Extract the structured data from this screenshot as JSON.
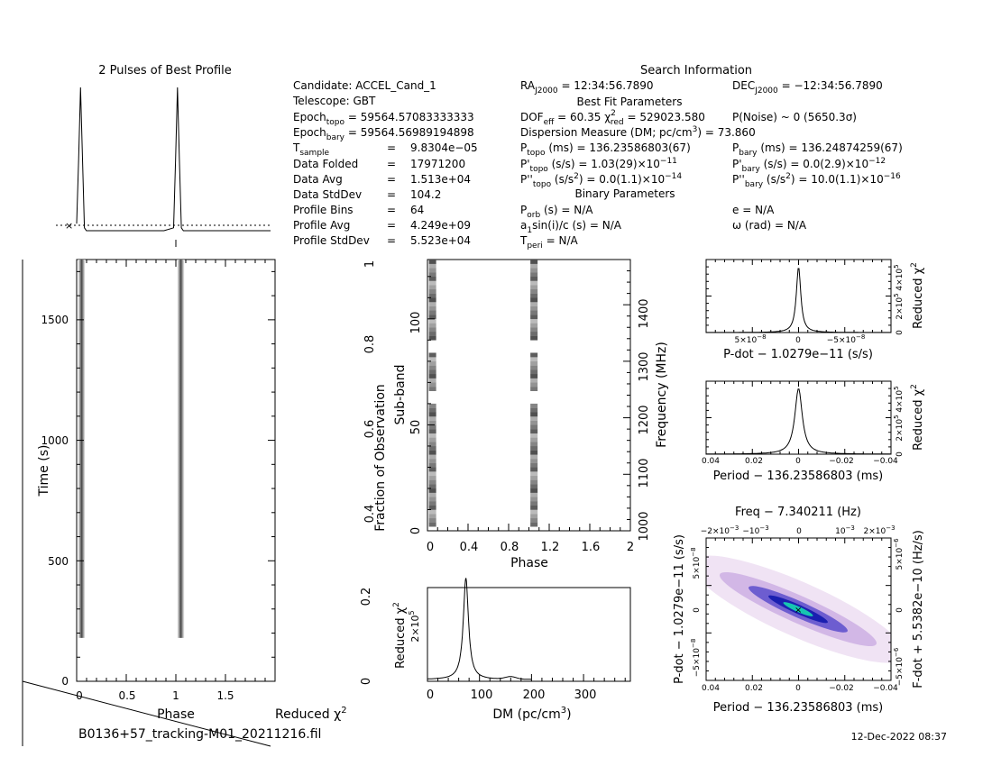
{
  "header": {
    "profile_title": "2 Pulses of Best Profile",
    "search_title": "Search Information",
    "best_fit_title": "Best Fit Parameters",
    "binary_title": "Binary Parameters"
  },
  "info_col1": [
    {
      "label": "Candidate:  ACCEL_Cand_1"
    },
    {
      "label": "Telescope:  GBT"
    },
    {
      "label": "Epoch",
      "sub": "topo",
      "value": " = 59564.57083333333"
    },
    {
      "label": "Epoch",
      "sub": "bary",
      "value": " = 59564.56989194898"
    },
    {
      "label": "T",
      "sub": "sample",
      "value": "9.8304e−05"
    },
    {
      "label": "Data Folded",
      "value": "17971200"
    },
    {
      "label": "Data Avg",
      "value": "1.513e+04"
    },
    {
      "label": "Data StdDev",
      "value": "104.2"
    },
    {
      "label": "Profile Bins",
      "value": "64"
    },
    {
      "label": "Profile Avg",
      "value": "4.249e+09"
    },
    {
      "label": "Profile StdDev",
      "value": "5.523e+04"
    }
  ],
  "info_col2": {
    "ra": "RA",
    "ra_sub": "J2000",
    "ra_value": " = 12:34:56.7890",
    "dec": "DEC",
    "dec_sub": "J2000",
    "dec_value": " = −12:34:56.7890",
    "dof": "DOF",
    "dof_sub": "eff",
    "dof_value": " = 60.35  ",
    "chi": "χ",
    "chi_sup": "2",
    "chi_sub": "red",
    "chi_value": " = 529023.580",
    "pnoise": "P(Noise) ~ 0    (5650.3σ)",
    "dm_line": "Dispersion Measure (DM; pc/cm",
    "dm_sup": "3",
    "dm_value": ") = 73.860",
    "ptopo": "P",
    "ptopo_sub": "topo",
    "ptopo_value": " (ms) =  136.23586803(67)",
    "pbary": "P",
    "pbary_sub": "bary",
    "pbary_value": " (ms) =  136.24874259(67)",
    "pdtopo_value": " (s/s) =  1.03(29)×10",
    "pdtopo_exp": "−11",
    "pdbary_value": " (s/s) = 0.0(2.9)×10",
    "pdbary_exp": "−12",
    "pddtopo_value": " (s/s",
    "pddtopo_value2": ") = 0.0(1.1)×10",
    "pddtopo_exp": "−14",
    "pddbary_value2": ") =   10.0(1.1)×10",
    "pddbary_exp": "−16",
    "porb": "P",
    "porb_sub": "orb",
    "porb_value": " (s) = N/A",
    "ecc": "e = N/A",
    "a1": "a",
    "a1_sub": "1",
    "a1_value": "sin(i)/c (s) = N/A",
    "omega": "ω (rad) = N/A",
    "tperi": "T",
    "tperi_sub": "peri",
    "tperi_value": " = N/A"
  },
  "labels": {
    "time_axis": "Time (s)",
    "phase": "Phase",
    "reduced_chi2": "Reduced χ",
    "chi2_sup": "2",
    "subband": "Sub-band",
    "frac_obs": "Fraction of Observation",
    "freq_mhz": "Frequency (MHz)",
    "dm_axis": "DM (pc/cm",
    "dm_axis_end": ")",
    "pdot_axis": "P-dot − 1.0279e−11 (s/s)",
    "period_axis": "Period − 136.23586803 (ms)",
    "freq_title": "Freq − 7.340211 (Hz)",
    "fdot_axis": "F-dot + 5.5382e−10 (Hz/s)",
    "pdot_left": "P-dot − 1.0279e−11 (s/s)"
  },
  "footer": {
    "filename": "B0136+57_tracking-M01_20211216.fil",
    "date": "12-Dec-2022 08:37"
  },
  "ticks": {
    "time_y": [
      "0",
      "500",
      "1000",
      "1500"
    ],
    "time_x": [
      "0",
      "0.5",
      "1",
      "1.5"
    ],
    "sub_x": [
      "0",
      "0.4",
      "0.8",
      "1.2",
      "1.6",
      "2"
    ],
    "sub_y": [
      "0",
      "50",
      "100"
    ],
    "frac_y": [
      "0.4",
      "0.6",
      "0.8",
      "1"
    ],
    "freq_y": [
      "1000",
      "1100",
      "1200",
      "1300",
      "1400"
    ],
    "dm_x": [
      "0",
      "100",
      "200",
      "300"
    ],
    "dm_y": [
      "0",
      "0.2"
    ],
    "dm_y_inner": "2×10",
    "dm_y_inner_exp": "5",
    "pd_x": [
      "5×10",
      "0",
      "−5×10"
    ],
    "pd_x_exp": "−8",
    "pd_y": [
      "0",
      "2×10",
      "4×10"
    ],
    "pd_y_exp": "5",
    "per_x": [
      "0.04",
      "0.02",
      "0",
      "−0.02",
      "−0.04"
    ],
    "freq_top": [
      "−2×10",
      "−10",
      "0",
      "10",
      "2×10"
    ],
    "freq_top_exp": "−3",
    "ppd_y": [
      "5×10",
      "0",
      "−5×10"
    ],
    "ppd_exp": "−8",
    "fdot_y": [
      "5×10",
      "0",
      "−5×10"
    ],
    "fdot_exp": "−6"
  },
  "chart_data": [
    {
      "type": "line",
      "title": "2 Pulses of Best Profile",
      "x": [
        0,
        0.02,
        0.04,
        0.06,
        0.08,
        0.1,
        0.5,
        0.9,
        1.0,
        1.02,
        1.04,
        1.06,
        1.08,
        1.1,
        1.5,
        2.0
      ],
      "values": [
        0.05,
        0.5,
        1.0,
        0.5,
        0.02,
        0.0,
        0.0,
        0.0,
        0.02,
        0.5,
        1.0,
        0.5,
        0.02,
        0.0,
        0.0,
        0.0
      ],
      "xlim": [
        0,
        2
      ]
    },
    {
      "type": "heatmap",
      "xlabel": "Phase",
      "ylabel": "Time (s)",
      "ylim": [
        0,
        1750
      ],
      "xlim": [
        0,
        2
      ],
      "pulse_phases": [
        0.05,
        1.05
      ],
      "signal_start_time": 180
    },
    {
      "type": "heatmap",
      "xlabel": "Phase",
      "ylabel": "Sub-band",
      "xlim": [
        0,
        2
      ],
      "ylim": [
        0,
        128
      ],
      "pulse_phases": [
        0.05,
        1.05
      ],
      "freq_range_mhz": [
        1000,
        1480
      ]
    },
    {
      "type": "line",
      "xlabel": "DM (pc/cm3)",
      "ylabel": "Reduced χ2",
      "xlim": [
        0,
        390
      ],
      "peak_dm": 73.86,
      "peak_value": 0.24
    },
    {
      "type": "line",
      "xlabel": "P-dot − 1.0279e−11 (s/s)",
      "ylabel": "Reduced χ2",
      "peak_x": 0
    },
    {
      "type": "line",
      "xlabel": "Period − 136.23586803 (ms)",
      "ylabel": "Reduced χ2",
      "xlim": [
        0.04,
        -0.04
      ],
      "peak_x": 0
    },
    {
      "type": "heatmap",
      "xlabel": "Period − 136.23586803 (ms)",
      "ylabel": "P-dot − 1.0279e−11 (s/s)",
      "title": "Freq − 7.340211 (Hz)",
      "xlim": [
        0.04,
        -0.04
      ],
      "ylim": [
        -8e-08,
        8e-08
      ]
    }
  ]
}
